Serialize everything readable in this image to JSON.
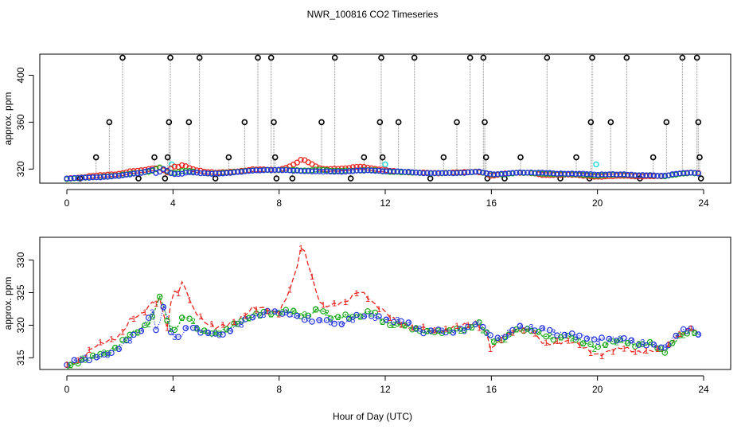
{
  "title": "NWR_100816  CO2 Timeseries",
  "xlabel": "Hour of Day (UTC)",
  "colors": {
    "series1": "#e8231e",
    "series2": "#1faa1f",
    "series3": "#2233dd",
    "spike": "#000000",
    "cyan": "#33dddd",
    "connector": "#888888"
  },
  "chart_data": [
    {
      "type": "scatter",
      "ylabel": "approx. ppm",
      "xlim": [
        0,
        24
      ],
      "ylim": [
        308,
        418
      ],
      "xticks": [
        0,
        4,
        8,
        12,
        16,
        20,
        24
      ],
      "yticks": [
        320,
        360,
        400
      ],
      "spike_x": [
        0.5,
        1.1,
        1.6,
        2.1,
        2.7,
        3.3,
        3.7,
        3.8,
        3.85,
        3.9,
        4.6,
        5.0,
        5.6,
        6.1,
        6.7,
        7.2,
        7.7,
        7.8,
        7.85,
        7.9,
        8.5,
        9.6,
        10.1,
        10.7,
        11.2,
        11.8,
        11.85,
        11.9,
        12.5,
        13.1,
        13.7,
        14.2,
        14.7,
        15.2,
        15.7,
        15.75,
        15.8,
        15.85,
        16.5,
        17.1,
        18.1,
        18.6,
        19.2,
        19.7,
        19.75,
        19.8,
        20.5,
        21.1,
        21.6,
        22.1,
        22.6,
        23.2,
        23.75,
        23.8,
        23.85,
        23.9
      ],
      "spike_y": [
        312,
        330,
        360,
        415,
        312,
        330,
        312,
        330,
        360,
        415,
        360,
        415,
        312,
        330,
        360,
        415,
        415,
        360,
        330,
        312,
        312,
        360,
        415,
        312,
        330,
        360,
        415,
        330,
        360,
        415,
        312,
        330,
        360,
        415,
        415,
        360,
        330,
        312,
        312,
        330,
        415,
        312,
        330,
        312,
        360,
        415,
        360,
        415,
        312,
        330,
        360,
        415,
        415,
        360,
        330,
        312
      ],
      "cyan_x": [
        3.95,
        12.0,
        19.95
      ],
      "cyan_y": [
        324,
        324,
        324
      ]
    },
    {
      "type": "line",
      "ylabel": "approx. ppm",
      "xlim": [
        0,
        24
      ],
      "ylim": [
        313.2,
        333.5
      ],
      "xticks": [
        0,
        4,
        8,
        12,
        16,
        20,
        24
      ],
      "yticks": [
        315,
        320,
        325,
        330
      ],
      "point_labels": [
        "1",
        "2",
        "3"
      ],
      "series": [
        {
          "name": "1",
          "color": "#e8231e",
          "x": [
            0.0,
            0.5,
            1.0,
            1.5,
            2.0,
            2.4,
            2.8,
            3.2,
            3.5,
            3.8,
            4.0,
            4.2,
            4.4,
            4.6,
            4.8,
            5.2,
            5.6,
            6.0,
            6.5,
            7.0,
            7.5,
            8.0,
            8.3,
            8.6,
            8.8,
            8.9,
            9.1,
            9.3,
            9.6,
            10.0,
            10.5,
            11.0,
            11.3,
            11.6,
            12.0,
            12.5,
            13.0,
            13.5,
            14.0,
            14.5,
            15.0,
            15.4,
            15.8,
            16.0,
            16.5,
            17.0,
            17.5,
            18.0,
            18.5,
            19.0,
            19.5,
            20.0,
            20.5,
            21.0,
            21.5,
            22.0,
            22.5,
            23.0,
            23.5,
            23.8
          ],
          "y": [
            314.0,
            314.8,
            316.5,
            317.5,
            318.5,
            320.8,
            321.5,
            323.5,
            324.0,
            319.5,
            325.5,
            324.8,
            327.0,
            324.0,
            322.5,
            320.5,
            319.5,
            320.0,
            321.0,
            322.5,
            322.5,
            322.0,
            324.5,
            327.5,
            331.5,
            332.0,
            329.5,
            326.5,
            323.0,
            323.0,
            323.5,
            325.5,
            324.5,
            323.0,
            322.0,
            320.5,
            319.5,
            319.5,
            319.0,
            319.5,
            320.0,
            320.5,
            319.0,
            316.0,
            318.5,
            319.5,
            319.0,
            317.0,
            317.5,
            317.5,
            316.5,
            315.5,
            316.0,
            316.5,
            316.0,
            316.0,
            316.0,
            318.5,
            319.5,
            319.0
          ]
        },
        {
          "name": "2",
          "color": "#1faa1f",
          "x": [
            0.0,
            0.5,
            1.0,
            1.5,
            2.0,
            2.4,
            2.8,
            3.2,
            3.5,
            3.8,
            4.0,
            4.3,
            4.6,
            5.0,
            5.5,
            6.0,
            6.5,
            7.0,
            7.5,
            8.0,
            8.5,
            9.0,
            9.5,
            10.0,
            10.5,
            11.0,
            11.5,
            12.0,
            12.5,
            13.0,
            13.5,
            14.0,
            14.5,
            15.0,
            15.5,
            16.0,
            16.5,
            17.0,
            17.5,
            18.0,
            18.5,
            19.0,
            19.5,
            20.0,
            20.5,
            21.0,
            21.5,
            22.0,
            22.5,
            23.0,
            23.5,
            23.8
          ],
          "y": [
            313.6,
            314.5,
            315.0,
            316.0,
            317.0,
            318.5,
            319.5,
            321.0,
            324.5,
            320.5,
            318.5,
            321.0,
            321.5,
            319.0,
            318.5,
            319.5,
            320.5,
            321.5,
            322.0,
            322.0,
            322.0,
            321.5,
            322.5,
            321.0,
            321.5,
            321.5,
            322.0,
            320.5,
            320.0,
            319.5,
            319.0,
            319.0,
            319.0,
            319.5,
            320.5,
            317.5,
            318.0,
            319.5,
            319.0,
            318.5,
            318.0,
            318.0,
            317.5,
            316.5,
            317.5,
            317.5,
            317.0,
            317.0,
            316.0,
            318.0,
            319.0,
            318.8
          ]
        },
        {
          "name": "3",
          "color": "#2233dd",
          "x": [
            0.0,
            0.5,
            1.0,
            1.5,
            2.0,
            2.4,
            2.8,
            3.0,
            3.2,
            3.4,
            3.6,
            3.8,
            4.0,
            4.3,
            4.6,
            5.0,
            5.5,
            6.0,
            6.5,
            7.0,
            7.5,
            8.0,
            8.5,
            9.0,
            9.5,
            10.0,
            10.5,
            11.0,
            11.5,
            12.0,
            12.5,
            13.0,
            13.5,
            14.0,
            14.5,
            15.0,
            15.5,
            16.0,
            16.5,
            17.0,
            17.5,
            18.0,
            18.5,
            19.0,
            19.5,
            20.0,
            20.5,
            21.0,
            21.5,
            22.0,
            22.5,
            23.0,
            23.5,
            23.8
          ],
          "y": [
            314.0,
            314.5,
            315.0,
            315.5,
            316.5,
            318.0,
            319.5,
            320.5,
            322.5,
            318.0,
            323.0,
            321.0,
            318.0,
            318.5,
            320.0,
            319.0,
            318.5,
            319.0,
            320.0,
            321.5,
            322.0,
            322.0,
            321.5,
            321.0,
            320.5,
            320.5,
            320.5,
            321.5,
            321.5,
            321.0,
            320.5,
            320.0,
            319.0,
            319.0,
            319.0,
            319.5,
            320.5,
            318.0,
            318.5,
            319.5,
            319.5,
            319.5,
            318.5,
            318.5,
            318.5,
            317.5,
            318.0,
            318.0,
            317.0,
            317.0,
            316.5,
            318.5,
            319.5,
            319.0
          ]
        }
      ]
    }
  ]
}
